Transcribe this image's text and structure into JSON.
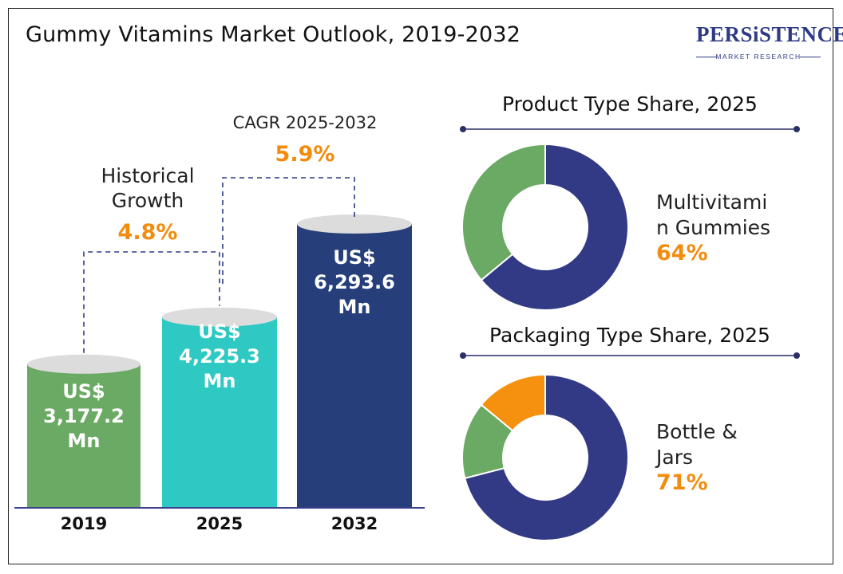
{
  "title": "Gummy Vitamins Market Outlook, 2019-2032",
  "logo": {
    "main": "PERSiSTENCE",
    "sub": "MARKET RESEARCH"
  },
  "annotations": {
    "historical_label_line1": "Historical",
    "historical_label_line2": "Growth",
    "historical_value": "4.8%",
    "cagr_label": "CAGR 2025-2032",
    "cagr_value": "5.9%"
  },
  "chart_data": [
    {
      "type": "bar",
      "categories": [
        "2019",
        "2025",
        "2032"
      ],
      "values": [
        3177.2,
        4225.3,
        6293.6
      ],
      "value_labels": [
        [
          "US$",
          "3,177.2",
          "Mn"
        ],
        [
          "US$",
          "4,225.3",
          "Mn"
        ],
        [
          "US$",
          "6,293.6",
          "Mn"
        ]
      ],
      "colors": [
        "#6aaa64",
        "#2ec9c3",
        "#263f7a"
      ],
      "ylim": [
        0,
        7000
      ]
    },
    {
      "type": "pie",
      "title": "Product Type Share, 2025",
      "highlight_label": [
        "Multivitami",
        "n Gummies"
      ],
      "highlight_value": "64%",
      "slices": [
        {
          "value": 64,
          "color": "#323a85"
        },
        {
          "value": 36,
          "color": "#6aaa64"
        }
      ]
    },
    {
      "type": "pie",
      "title": "Packaging Type Share, 2025",
      "highlight_label": [
        "Bottle &",
        "Jars"
      ],
      "highlight_value": "71%",
      "slices": [
        {
          "value": 71,
          "color": "#323a85"
        },
        {
          "value": 15,
          "color": "#6aaa64"
        },
        {
          "value": 14,
          "color": "#f5910f"
        }
      ]
    }
  ]
}
